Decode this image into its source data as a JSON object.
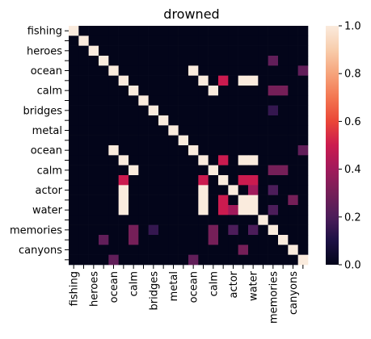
{
  "chart_data": {
    "type": "heatmap",
    "title": "drowned",
    "xlabel": "",
    "ylabel": "",
    "row_labels": [
      "fishing",
      "",
      "heroes",
      "",
      "ocean",
      "",
      "calm",
      "",
      "bridges",
      "",
      "metal",
      "",
      "ocean",
      "",
      "calm",
      "",
      "actor",
      "",
      "water",
      "",
      "memories",
      "",
      "canyons",
      ""
    ],
    "col_labels": [
      "fishing",
      "",
      "heroes",
      "",
      "ocean",
      "",
      "calm",
      "",
      "bridges",
      "",
      "metal",
      "",
      "ocean",
      "",
      "calm",
      "",
      "actor",
      "",
      "water",
      "",
      "memories",
      "",
      "canyons",
      ""
    ],
    "matrix": [
      [
        1,
        0,
        0,
        0,
        0,
        0,
        0,
        0,
        0,
        0,
        0,
        0,
        0,
        0,
        0,
        0,
        0,
        0,
        0,
        0,
        0,
        0,
        0,
        0
      ],
      [
        0,
        1,
        0,
        0,
        0,
        0,
        0,
        0,
        0,
        0,
        0,
        0,
        0,
        0,
        0,
        0,
        0,
        0,
        0,
        0,
        0,
        0,
        0,
        0
      ],
      [
        0,
        0,
        1,
        0,
        0,
        0,
        0,
        0,
        0,
        0,
        0,
        0,
        0,
        0,
        0,
        0,
        0,
        0,
        0,
        0,
        0,
        0,
        0,
        0
      ],
      [
        0,
        0,
        0,
        1,
        0,
        0,
        0,
        0,
        0,
        0,
        0,
        0,
        0,
        0,
        0,
        0,
        0,
        0,
        0,
        0,
        0.25,
        0,
        0,
        0
      ],
      [
        0,
        0,
        0,
        0,
        1,
        0,
        0,
        0,
        0,
        0,
        0,
        0,
        1,
        0,
        0,
        0,
        0,
        0,
        0,
        0,
        0,
        0,
        0,
        0.25
      ],
      [
        0,
        0,
        0,
        0,
        0,
        1,
        0,
        0,
        0,
        0,
        0,
        0,
        0,
        1,
        0,
        0.5,
        0,
        1,
        1,
        0,
        0,
        0,
        0,
        0
      ],
      [
        0,
        0,
        0,
        0,
        0,
        0,
        1,
        0,
        0,
        0,
        0,
        0,
        0,
        0,
        1,
        0,
        0,
        0,
        0,
        0,
        0.3,
        0.3,
        0,
        0
      ],
      [
        0,
        0,
        0,
        0,
        0,
        0,
        0,
        1,
        0,
        0,
        0,
        0,
        0,
        0,
        0,
        0,
        0,
        0,
        0,
        0,
        0,
        0,
        0,
        0
      ],
      [
        0,
        0,
        0,
        0,
        0,
        0,
        0,
        0,
        1,
        0,
        0,
        0,
        0,
        0,
        0,
        0,
        0,
        0,
        0,
        0,
        0.15,
        0,
        0,
        0
      ],
      [
        0,
        0,
        0,
        0,
        0,
        0,
        0,
        0,
        0,
        1,
        0,
        0,
        0,
        0,
        0,
        0,
        0,
        0,
        0,
        0,
        0,
        0,
        0,
        0
      ],
      [
        0,
        0,
        0,
        0,
        0,
        0,
        0,
        0,
        0,
        0,
        1,
        0,
        0,
        0,
        0,
        0,
        0,
        0,
        0,
        0,
        0,
        0,
        0,
        0
      ],
      [
        0,
        0,
        0,
        0,
        0,
        0,
        0,
        0,
        0,
        0,
        0,
        1,
        0,
        0,
        0,
        0,
        0,
        0,
        0,
        0,
        0,
        0,
        0,
        0
      ],
      [
        0,
        0,
        0,
        0,
        1,
        0,
        0,
        0,
        0,
        0,
        0,
        0,
        1,
        0,
        0,
        0,
        0,
        0,
        0,
        0,
        0,
        0,
        0,
        0.25
      ],
      [
        0,
        0,
        0,
        0,
        0,
        1,
        0,
        0,
        0,
        0,
        0,
        0,
        0,
        1,
        0,
        0.5,
        0,
        1,
        1,
        0,
        0,
        0,
        0,
        0
      ],
      [
        0,
        0,
        0,
        0,
        0,
        0,
        1,
        0,
        0,
        0,
        0,
        0,
        0,
        0,
        1,
        0,
        0,
        0,
        0,
        0,
        0.3,
        0.3,
        0,
        0
      ],
      [
        0,
        0,
        0,
        0,
        0,
        0.5,
        0,
        0,
        0,
        0,
        0,
        0,
        0,
        0.5,
        0,
        1,
        0,
        0.5,
        0.5,
        0,
        0,
        0,
        0,
        0
      ],
      [
        0,
        0,
        0,
        0,
        0,
        1,
        0,
        0,
        0,
        0,
        0,
        0,
        0,
        1,
        0,
        0,
        1,
        0,
        0.4,
        0,
        0.2,
        0,
        0,
        0
      ],
      [
        0,
        0,
        0,
        0,
        0,
        1,
        0,
        0,
        0,
        0,
        0,
        0,
        0,
        1,
        0,
        0.5,
        0,
        1,
        1,
        0,
        0,
        0,
        0.3,
        0
      ],
      [
        0,
        0,
        0,
        0,
        0,
        1,
        0,
        0,
        0,
        0,
        0,
        0,
        0,
        1,
        0,
        0.5,
        0.4,
        1,
        1,
        0,
        0.2,
        0,
        0,
        0
      ],
      [
        0,
        0,
        0,
        0,
        0,
        0,
        0,
        0,
        0,
        0,
        0,
        0,
        0,
        0,
        0,
        0,
        0,
        0,
        0,
        1,
        0,
        0,
        0,
        0
      ],
      [
        0,
        0,
        0,
        0,
        0,
        0,
        0.3,
        0,
        0.15,
        0,
        0,
        0,
        0,
        0,
        0.3,
        0,
        0.2,
        0,
        0.2,
        0,
        1,
        0,
        0,
        0
      ],
      [
        0,
        0,
        0,
        0.25,
        0,
        0,
        0.3,
        0,
        0,
        0,
        0,
        0,
        0,
        0,
        0.3,
        0,
        0,
        0,
        0,
        0,
        0,
        1,
        0,
        0
      ],
      [
        0,
        0,
        0,
        0,
        0,
        0,
        0,
        0,
        0,
        0,
        0,
        0,
        0,
        0,
        0,
        0,
        0,
        0.3,
        0,
        0,
        0,
        0,
        1,
        0
      ],
      [
        0,
        0,
        0,
        0,
        0.25,
        0,
        0,
        0,
        0,
        0,
        0,
        0,
        0.25,
        0,
        0,
        0,
        0,
        0,
        0,
        0,
        0,
        0,
        0,
        1
      ]
    ],
    "colorbar": {
      "min": 0,
      "max": 1,
      "ticks": [
        "0.0",
        "0.2",
        "0.4",
        "0.6",
        "0.8",
        "1.0"
      ],
      "tick_values": [
        0,
        0.2,
        0.4,
        0.6,
        0.8,
        1.0
      ]
    },
    "grid": false
  }
}
